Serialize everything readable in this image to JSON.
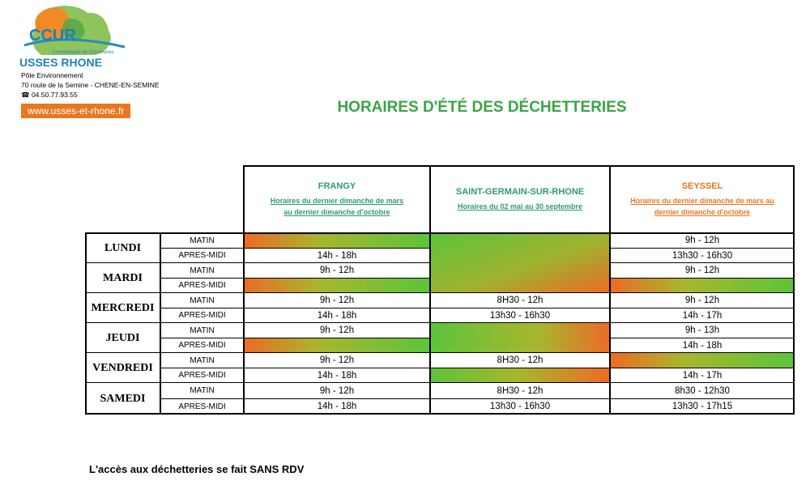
{
  "org": {
    "logo_text": "CCUR",
    "logo_sub": "Communauté de Communes",
    "logo_name": "USSES RHONE",
    "department": "Pôle Environnement",
    "address": "70 route de la Semine - CHENE-EN-SEMINE",
    "phone": "04.50.77.93.55",
    "website": "www.usses-et-rhone.fr"
  },
  "title": "HORAIRES D'ÉTÉ DES DÉCHETTERIES",
  "colors": {
    "accent_green": "#3aa546",
    "accent_orange": "#e87722",
    "closed_orange": "#ec6b26",
    "closed_green": "#5cc43b"
  },
  "columns": [
    {
      "name": "FRANGY",
      "sub1": "Horaires du dernier dimanche de mars",
      "sub2": "au dernier dimanche d'octobre",
      "color": "#2e9a6e"
    },
    {
      "name": "SAINT-GERMAIN-SUR-RHONE",
      "sub1": "Horaires du 02 mai au 30 septembre",
      "sub2": "",
      "color": "#2e9a6e"
    },
    {
      "name": "SEYSSEL",
      "sub1": "Horaires du dernier dimanche de mars au",
      "sub2": "dernier dimanche d'octobre",
      "color": "#e87722"
    }
  ],
  "days": [
    "LUNDI",
    "MARDI",
    "MERCREDI",
    "JEUDI",
    "VENDREDI",
    "SAMEDI"
  ],
  "period_labels": {
    "am": "MATIN",
    "pm": "APRES-MIDI"
  },
  "hours": {
    "frangy": [
      "",
      "14h - 18h",
      "9h - 12h",
      "",
      "9h - 12h",
      "14h - 18h",
      "9h - 12h",
      "",
      "9h - 12h",
      "14h - 18h",
      "9h - 12h",
      "14h - 18h"
    ],
    "saint_germain": [
      "",
      "",
      "",
      "",
      "8H30 - 12h",
      "13h30 - 16h30",
      "",
      "",
      "8H30 - 12h",
      "",
      "8H30 - 12h",
      "13h30 - 16h30"
    ],
    "seyssel": [
      "9h - 12h",
      "13h30 - 16h30",
      "9h - 12h",
      "",
      "9h - 12h",
      "14h - 17h",
      "9h - 13h",
      "14h - 18h",
      "",
      "14h - 17h",
      "8h30 - 12h30",
      "13h30 - 17h15"
    ]
  },
  "footer": "L'accès aux déchetteries se fait SANS RDV"
}
